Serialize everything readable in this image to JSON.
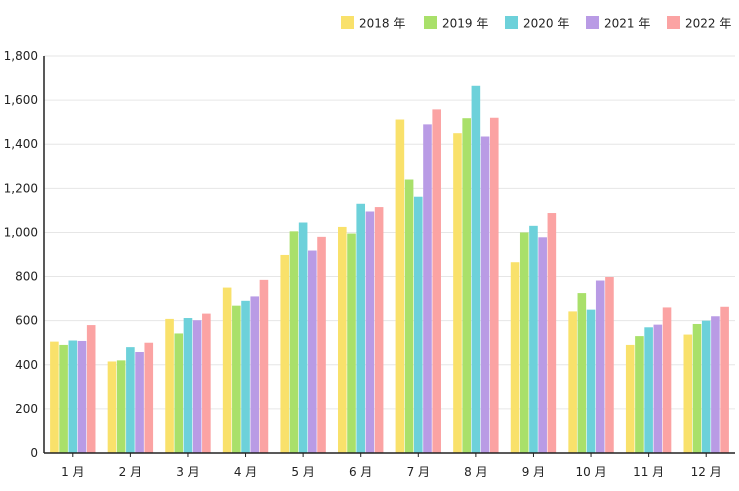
{
  "chart_data": {
    "type": "bar",
    "categories": [
      "1 月",
      "2 月",
      "3 月",
      "4 月",
      "5 月",
      "6 月",
      "7 月",
      "8 月",
      "9 月",
      "10 月",
      "11 月",
      "12 月"
    ],
    "series": [
      {
        "name": "2018 年",
        "color": "#f9e16b",
        "values": [
          505,
          415,
          608,
          750,
          898,
          1025,
          1512,
          1450,
          865,
          642,
          490,
          537
        ]
      },
      {
        "name": "2019 年",
        "color": "#a9e06a",
        "values": [
          490,
          420,
          542,
          668,
          1005,
          995,
          1240,
          1518,
          1000,
          725,
          530,
          585
        ]
      },
      {
        "name": "2020 年",
        "color": "#6dd1da",
        "values": [
          510,
          480,
          612,
          690,
          1045,
          1130,
          1162,
          1665,
          1030,
          650,
          570,
          600
        ]
      },
      {
        "name": "2021 年",
        "color": "#b99be5",
        "values": [
          508,
          458,
          602,
          710,
          918,
          1095,
          1490,
          1435,
          978,
          782,
          582,
          620
        ]
      },
      {
        "name": "2022 年",
        "color": "#fba3a3",
        "values": [
          580,
          500,
          632,
          785,
          980,
          1115,
          1558,
          1520,
          1088,
          798,
          660,
          663
        ]
      }
    ],
    "ylim": [
      0,
      1800
    ],
    "yticks": [
      "0",
      "200",
      "400",
      "600",
      "800",
      "1,000",
      "1,200",
      "1,400",
      "1,600",
      "1,800"
    ],
    "grid": true,
    "legend": "top-right"
  }
}
